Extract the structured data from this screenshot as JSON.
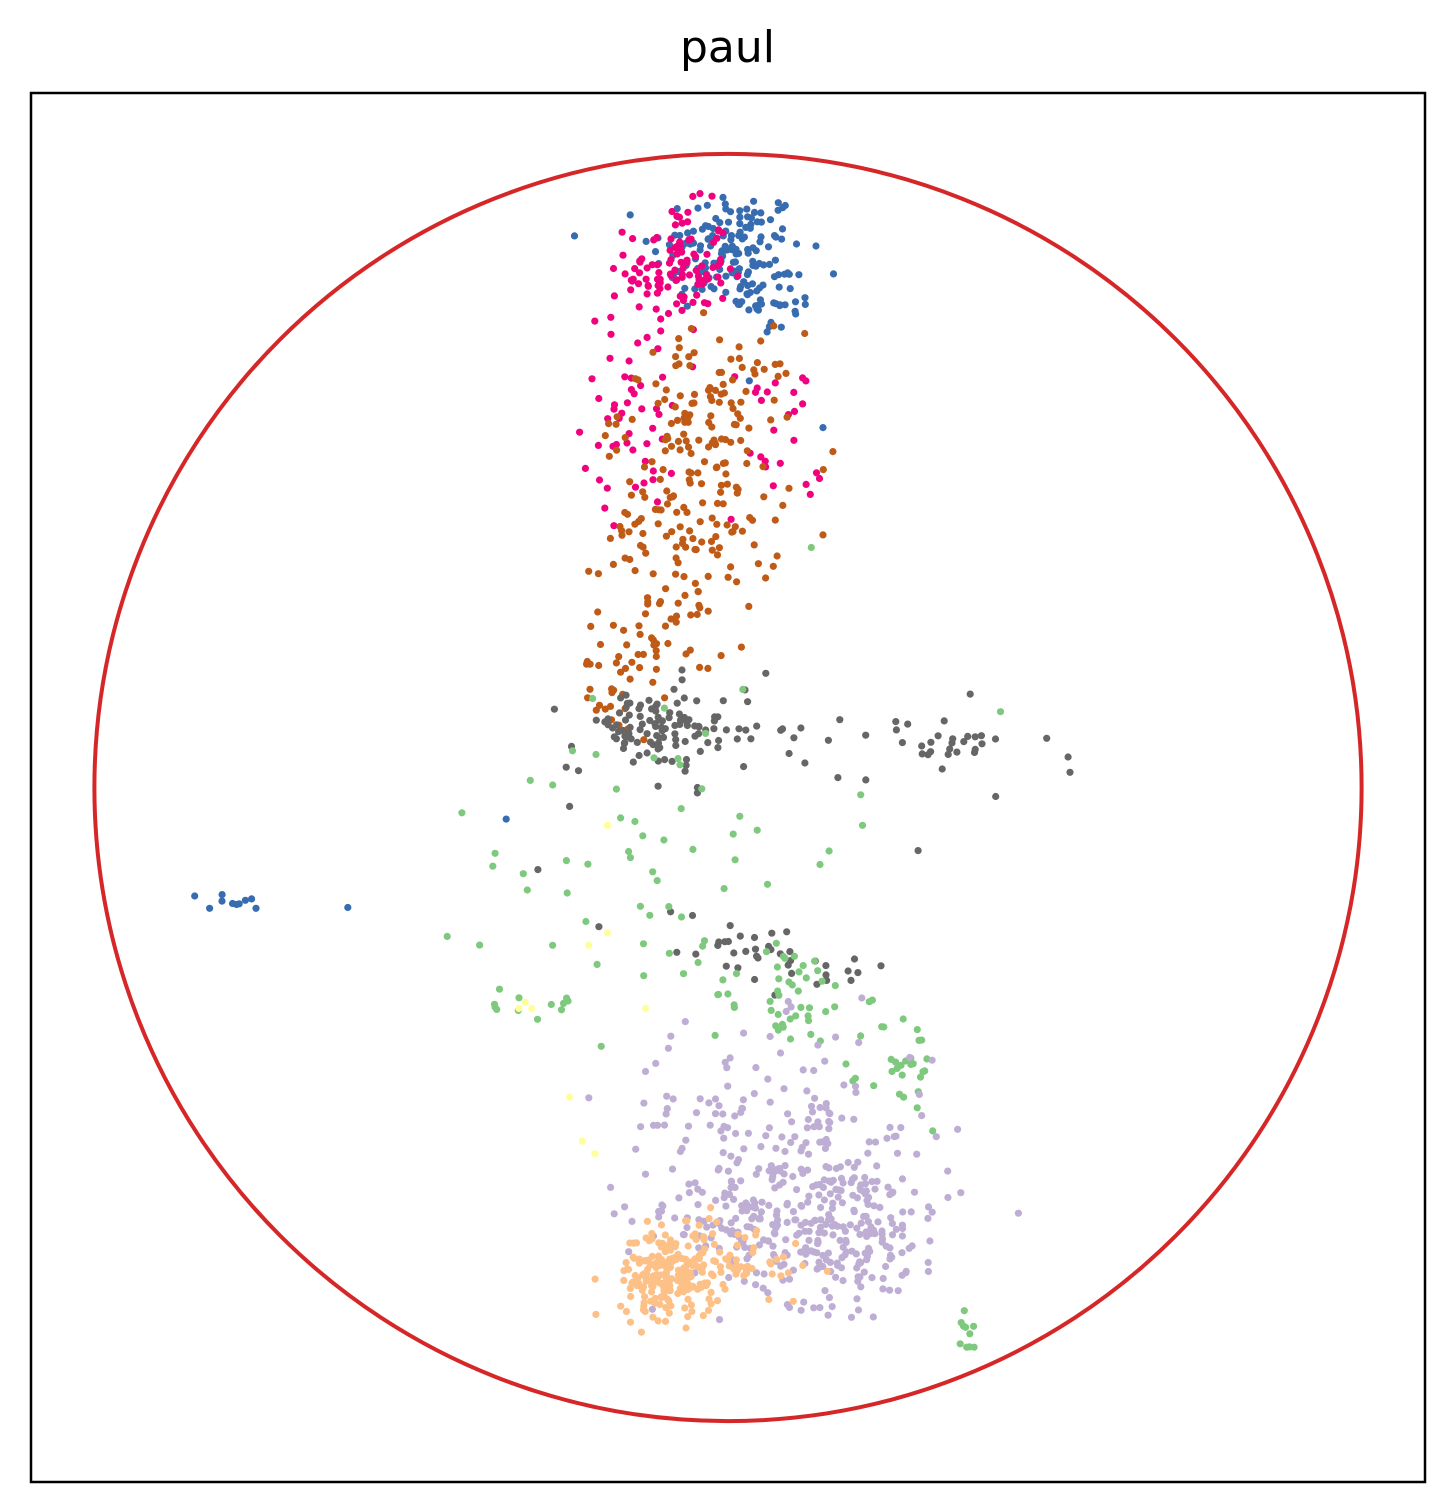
{
  "chart_data": {
    "type": "scatter",
    "title": "paul",
    "xlabel": "",
    "ylabel": "",
    "ticks": false,
    "grid": false,
    "legend": "none",
    "xlim": [
      -1.1,
      1.1
    ],
    "ylim": [
      -1.1,
      1.1
    ],
    "boundary_circle": {
      "cx": 0,
      "cy": 0,
      "r": 1,
      "color": "#d62728"
    },
    "series": [
      {
        "color": "#386cb0",
        "clusters": [
          {
            "cx": 0.0,
            "cy": 0.85,
            "sx": 0.06,
            "sy": 0.05,
            "n": 150
          },
          {
            "cx": 0.08,
            "cy": 0.77,
            "sx": 0.03,
            "sy": 0.03,
            "n": 30
          },
          {
            "cx": -0.78,
            "cy": -0.18,
            "sx": 0.025,
            "sy": 0.008,
            "n": 10
          }
        ],
        "points": [
          [
            -0.6,
            -0.19
          ],
          [
            -0.35,
            -0.05
          ],
          [
            0.15,
            0.57
          ]
        ]
      },
      {
        "color": "#f0027f",
        "clusters": [
          {
            "cx": -0.08,
            "cy": 0.82,
            "sx": 0.04,
            "sy": 0.05,
            "n": 110
          },
          {
            "cx": -0.15,
            "cy": 0.6,
            "sx": 0.04,
            "sy": 0.08,
            "n": 50
          },
          {
            "cx": 0.07,
            "cy": 0.55,
            "sx": 0.04,
            "sy": 0.07,
            "n": 25
          }
        ]
      },
      {
        "color": "#bf5b17",
        "clusters": [
          {
            "cx": -0.03,
            "cy": 0.6,
            "sx": 0.07,
            "sy": 0.06,
            "n": 110
          },
          {
            "cx": -0.06,
            "cy": 0.41,
            "sx": 0.07,
            "sy": 0.07,
            "n": 120
          },
          {
            "cx": -0.11,
            "cy": 0.23,
            "sx": 0.045,
            "sy": 0.04,
            "n": 40
          },
          {
            "cx": -0.18,
            "cy": 0.15,
            "sx": 0.02,
            "sy": 0.03,
            "n": 20
          }
        ]
      },
      {
        "color": "#666666",
        "clusters": [
          {
            "cx": -0.13,
            "cy": 0.09,
            "sx": 0.06,
            "sy": 0.03,
            "n": 90
          },
          {
            "cx": 0.0,
            "cy": 0.09,
            "sx": 0.07,
            "sy": 0.04,
            "n": 30
          },
          {
            "cx": 0.27,
            "cy": 0.05,
            "sx": 0.12,
            "sy": 0.04,
            "n": 25
          },
          {
            "cx": 0.37,
            "cy": 0.07,
            "sx": 0.03,
            "sy": 0.01,
            "n": 12
          },
          {
            "cx": 0.0,
            "cy": -0.25,
            "sx": 0.08,
            "sy": 0.03,
            "n": 25
          },
          {
            "cx": 0.14,
            "cy": -0.28,
            "sx": 0.06,
            "sy": 0.02,
            "n": 15
          }
        ],
        "points": [
          [
            -0.25,
            -0.03
          ],
          [
            -0.3,
            -0.13
          ],
          [
            0.3,
            -0.1
          ]
        ]
      },
      {
        "color": "#7fc97f",
        "clusters": [
          {
            "cx": -0.1,
            "cy": -0.1,
            "sx": 0.14,
            "sy": 0.14,
            "n": 60
          },
          {
            "cx": 0.09,
            "cy": -0.33,
            "sx": 0.06,
            "sy": 0.04,
            "n": 45
          },
          {
            "cx": 0.28,
            "cy": -0.45,
            "sx": 0.03,
            "sy": 0.05,
            "n": 30
          },
          {
            "cx": -0.32,
            "cy": -0.34,
            "sx": 0.05,
            "sy": 0.015,
            "n": 12
          },
          {
            "cx": 0.38,
            "cy": -0.87,
            "sx": 0.006,
            "sy": 0.02,
            "n": 10
          }
        ],
        "points": [
          [
            0.43,
            0.12
          ],
          [
            -0.42,
            -0.04
          ]
        ]
      },
      {
        "color": "#beaed4",
        "clusters": [
          {
            "cx": 0.17,
            "cy": -0.7,
            "sx": 0.09,
            "sy": 0.06,
            "n": 260
          },
          {
            "cx": 0.07,
            "cy": -0.54,
            "sx": 0.13,
            "sy": 0.08,
            "n": 160
          },
          {
            "cx": -0.01,
            "cy": -0.68,
            "sx": 0.07,
            "sy": 0.05,
            "n": 60
          }
        ]
      },
      {
        "color": "#fdc086",
        "clusters": [
          {
            "cx": -0.09,
            "cy": -0.77,
            "sx": 0.04,
            "sy": 0.035,
            "n": 220
          },
          {
            "cx": 0.03,
            "cy": -0.74,
            "sx": 0.05,
            "sy": 0.03,
            "n": 40
          }
        ]
      },
      {
        "color": "#ffff99",
        "points": [
          [
            -0.32,
            -0.34
          ],
          [
            -0.31,
            -0.35
          ],
          [
            -0.33,
            -0.35
          ],
          [
            -0.22,
            -0.25
          ],
          [
            -0.25,
            -0.49
          ],
          [
            -0.23,
            -0.56
          ],
          [
            -0.21,
            -0.58
          ],
          [
            -0.19,
            -0.23
          ],
          [
            -0.13,
            -0.35
          ],
          [
            -0.19,
            -0.06
          ]
        ]
      }
    ]
  }
}
